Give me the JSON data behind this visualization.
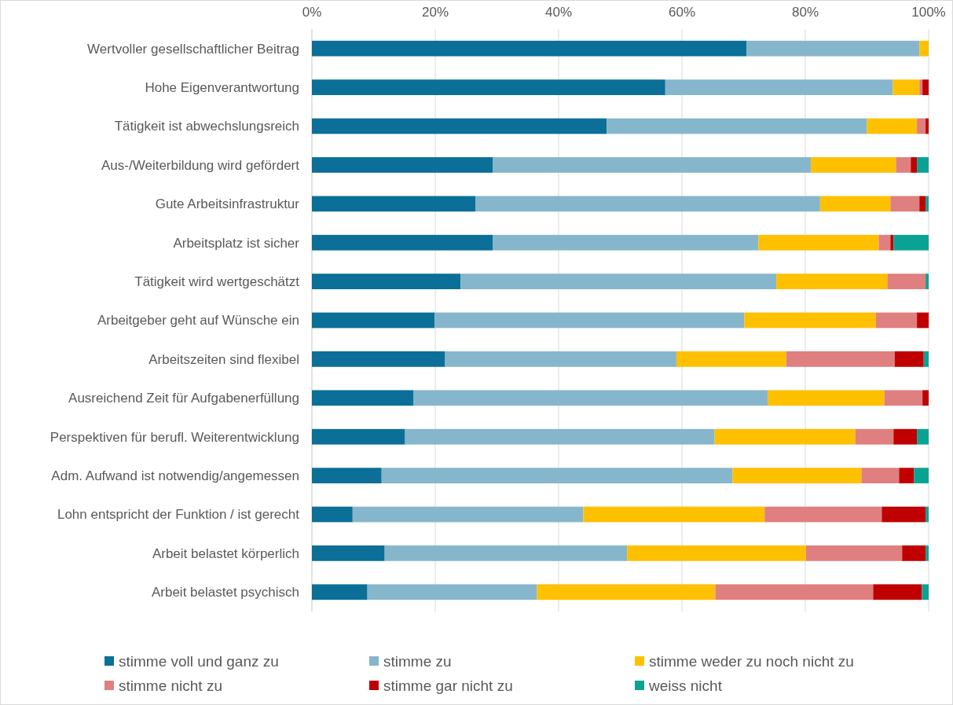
{
  "chart_data": {
    "type": "bar",
    "orientation": "horizontal",
    "stacked": true,
    "categories": [
      "Wertvoller gesellschaftlicher Beitrag",
      "Hohe Eigenverantwortung",
      "Tätigkeit ist abwechslungsreich",
      "Aus-/Weiterbildung wird gefördert",
      "Gute Arbeitsinfrastruktur",
      "Arbeitsplatz ist sicher",
      "Tätigkeit wird wertgeschätzt",
      "Arbeitgeber geht auf Wünsche ein",
      "Arbeitszeiten sind flexibel",
      "Ausreichend Zeit für Aufgabenerfüllung",
      "Perspektiven für berufl. Weiterentwicklung",
      "Adm. Aufwand ist notwendig/angemessen",
      "Lohn entspricht der Funktion / ist gerecht",
      "Arbeit belastet körperlich",
      "Arbeit belastet psychisch"
    ],
    "series": [
      {
        "name": "stimme voll und ganz zu",
        "color": "#0b6f97",
        "values": [
          70.5,
          57.3,
          47.8,
          29.3,
          26.5,
          29.3,
          24.1,
          19.9,
          21.6,
          16.5,
          15.1,
          11.3,
          6.6,
          11.8,
          9
        ]
      },
      {
        "name": "stimme zu",
        "color": "#86b6cb",
        "values": [
          28,
          36.9,
          42.2,
          51.6,
          55.9,
          43.1,
          51.2,
          50.2,
          37.5,
          57.4,
          50.2,
          56.9,
          37.4,
          39.3,
          27.5
        ]
      },
      {
        "name": "stimme weder zu noch nicht zu",
        "color": "#ffc000",
        "values": [
          1.5,
          4.3,
          8.1,
          13.8,
          11.4,
          19.5,
          18,
          21.3,
          17.8,
          18.9,
          22.8,
          20.9,
          29.4,
          29,
          28.9
        ]
      },
      {
        "name": "stimme nicht zu",
        "color": "#e07f7f",
        "values": [
          0,
          0.5,
          1.4,
          2.4,
          4.7,
          1.9,
          6.2,
          6.7,
          17.6,
          6.2,
          6.2,
          6.1,
          19,
          15.6,
          25.6
        ]
      },
      {
        "name": "stimme gar nicht zu",
        "color": "#c00000",
        "values": [
          0,
          1,
          0.5,
          1,
          1,
          0.5,
          0,
          1.9,
          4.7,
          1,
          3.8,
          2.4,
          7.1,
          3.8,
          7.9
        ]
      },
      {
        "name": "weiss nicht",
        "color": "#0aa393",
        "values": [
          0,
          0,
          0,
          1.9,
          0.5,
          5.7,
          0.5,
          0,
          0.8,
          0,
          1.9,
          2.4,
          0.5,
          0.5,
          1.1
        ]
      }
    ],
    "xlim": [
      0,
      100
    ],
    "xticks": [
      {
        "value": 0,
        "label": "0%"
      },
      {
        "value": 20,
        "label": "20%"
      },
      {
        "value": 40,
        "label": "40%"
      },
      {
        "value": 60,
        "label": "60%"
      },
      {
        "value": 80,
        "label": "80%"
      },
      {
        "value": 100,
        "label": "100%"
      }
    ],
    "grid": "x",
    "legend": "bottom"
  }
}
